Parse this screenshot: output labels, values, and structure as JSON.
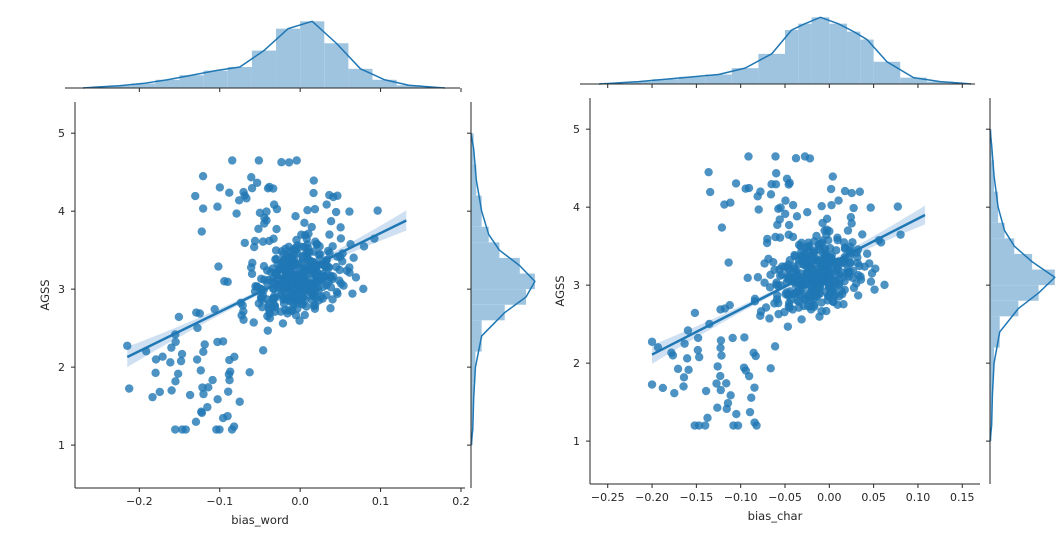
{
  "chart_data": [
    {
      "type": "scatter",
      "title": "",
      "xlabel": "bias_word",
      "ylabel": "AGSS",
      "xlim": [
        -0.28,
        0.205
      ],
      "ylim": [
        0.45,
        5.4
      ],
      "xticks": [
        -0.2,
        -0.1,
        0.0,
        0.1,
        0.2
      ],
      "xtick_labels": [
        "−0.2",
        "−0.1",
        "0.0",
        "0.1",
        "0.2"
      ],
      "yticks": [
        1,
        2,
        3,
        4,
        5
      ],
      "ytick_labels": [
        "1",
        "2",
        "3",
        "4",
        "5"
      ],
      "regression_line": {
        "x": [
          -0.215,
          0.132
        ],
        "y": [
          2.13,
          3.88
        ],
        "ci_halfwidth_ends": 0.13
      },
      "marginal_x_hist": {
        "bin_edges": [
          -0.27,
          -0.24,
          -0.21,
          -0.18,
          -0.15,
          -0.12,
          -0.09,
          -0.06,
          -0.03,
          0.0,
          0.03,
          0.06,
          0.09,
          0.12,
          0.15,
          0.18
        ],
        "density": [
          0.1,
          0.25,
          0.5,
          0.9,
          1.4,
          1.9,
          2.3,
          4.1,
          6.5,
          7.3,
          4.9,
          2.1,
          0.9,
          0.3,
          0.1
        ]
      },
      "marginal_y_hist": {
        "bin_edges": [
          1.0,
          1.4,
          1.8,
          2.2,
          2.6,
          2.8,
          3.0,
          3.2,
          3.4,
          3.6,
          3.8,
          4.2,
          4.6,
          5.0
        ],
        "density": [
          0.02,
          0.03,
          0.05,
          0.12,
          0.38,
          0.62,
          0.72,
          0.55,
          0.32,
          0.2,
          0.12,
          0.06,
          0.03
        ]
      }
    },
    {
      "type": "scatter",
      "title": "",
      "xlabel": "bias_char",
      "ylabel": "AGSS",
      "xlim": [
        -0.27,
        0.17
      ],
      "ylim": [
        0.45,
        5.4
      ],
      "xticks": [
        -0.25,
        -0.2,
        -0.15,
        -0.1,
        -0.05,
        0.0,
        0.05,
        0.1,
        0.15
      ],
      "xtick_labels": [
        "−0.25",
        "−0.20",
        "−0.15",
        "−0.10",
        "−0.05",
        "0.00",
        "0.05",
        "0.10",
        "0.15"
      ],
      "yticks": [
        1,
        2,
        3,
        4,
        5
      ],
      "ytick_labels": [
        "1",
        "2",
        "3",
        "4",
        "5"
      ],
      "regression_line": {
        "x": [
          -0.2,
          0.108
        ],
        "y": [
          2.11,
          3.9
        ],
        "ci_halfwidth_ends": 0.12
      },
      "marginal_x_hist": {
        "bin_edges": [
          -0.26,
          -0.23,
          -0.2,
          -0.17,
          -0.14,
          -0.11,
          -0.08,
          -0.05,
          -0.035,
          -0.02,
          0.0,
          0.02,
          0.035,
          0.05,
          0.08,
          0.11,
          0.14,
          0.16
        ],
        "density": [
          0.1,
          0.3,
          0.6,
          0.9,
          1.2,
          2.0,
          3.8,
          6.8,
          7.6,
          8.4,
          7.6,
          6.6,
          5.6,
          2.8,
          0.8,
          0.3,
          0.1
        ]
      },
      "marginal_y_hist": {
        "bin_edges": [
          1.0,
          1.4,
          1.8,
          2.2,
          2.6,
          2.8,
          3.0,
          3.2,
          3.4,
          3.6,
          3.8,
          4.2,
          4.6,
          5.0
        ],
        "density": [
          0.02,
          0.03,
          0.05,
          0.12,
          0.35,
          0.6,
          0.8,
          0.52,
          0.3,
          0.18,
          0.1,
          0.05,
          0.02
        ]
      }
    }
  ],
  "colors": {
    "points": "#1f77b4",
    "hist": "#9ec4e0",
    "ci": "#c6dbef",
    "axes": "#262626"
  },
  "points_seed": 12345,
  "points_count": 450
}
